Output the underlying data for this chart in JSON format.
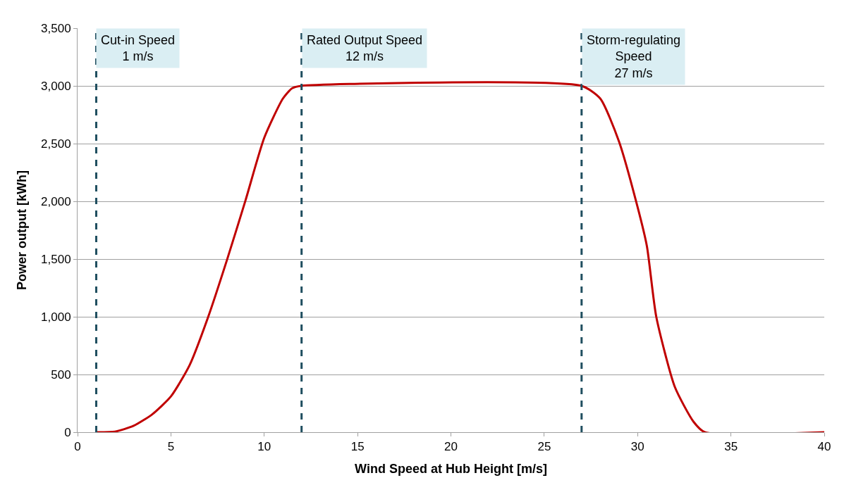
{
  "chart_data": {
    "type": "line",
    "xlabel": "Wind Speed at Hub Height [m/s]",
    "ylabel": "Power output [kWh]",
    "x": [
      1,
      2,
      3,
      4,
      5,
      6,
      7,
      8,
      9,
      10,
      11,
      11.5,
      12,
      27,
      28,
      29,
      30,
      30.5,
      31,
      32,
      33,
      33.6,
      40
    ],
    "series": [
      {
        "color": "#c00000",
        "values": [
          0,
          5,
          55,
          155,
          310,
          580,
          1000,
          1490,
          2010,
          2550,
          2890,
          2980,
          3000,
          3000,
          2890,
          2520,
          1950,
          1610,
          1000,
          390,
          90,
          0,
          0
        ]
      }
    ],
    "xlim": [
      0,
      40
    ],
    "xticks": [
      0,
      5,
      10,
      15,
      20,
      25,
      30,
      35,
      40
    ],
    "ylim": [
      0,
      3500
    ],
    "yticks": [
      {
        "value": 0,
        "label": "0"
      },
      {
        "value": 500,
        "label": "500"
      },
      {
        "value": 1000,
        "label": "1,000"
      },
      {
        "value": 1500,
        "label": "1,500"
      },
      {
        "value": 2000,
        "label": "2,000"
      },
      {
        "value": 2500,
        "label": "2,500"
      },
      {
        "value": 3000,
        "label": "3,000"
      },
      {
        "value": 3500,
        "label": "3,500"
      }
    ],
    "grid": "y",
    "legend": false,
    "marker": "none",
    "line_style": "solid",
    "ref_lines": [
      {
        "axis": "x",
        "value": 1,
        "label": "Cut-in Speed\n1 m/s",
        "color": "#1f4e5f",
        "line_style": "dashed"
      },
      {
        "axis": "x",
        "value": 12,
        "label": "Rated Output Speed\n12 m/s",
        "color": "#1f4e5f",
        "line_style": "dashed"
      },
      {
        "axis": "x",
        "value": 27,
        "label": "Storm-regulating\nSpeed\n27 m/s",
        "color": "#1f4e5f",
        "line_style": "dashed"
      }
    ]
  }
}
